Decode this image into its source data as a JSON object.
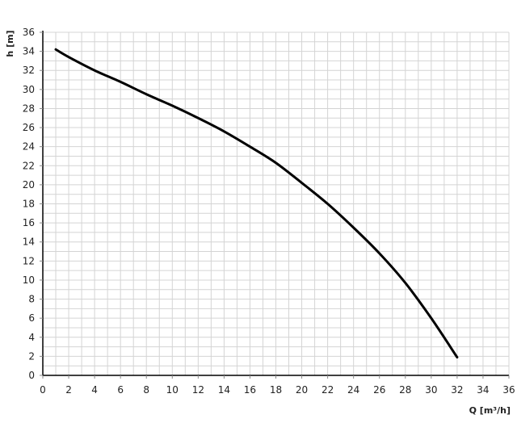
{
  "chart_data": {
    "type": "line",
    "title": "",
    "xlabel": "Q [m³/h]",
    "ylabel": "h [m]",
    "xlim": [
      0,
      36
    ],
    "ylim": [
      0,
      36
    ],
    "x_ticks": [
      0,
      2,
      4,
      6,
      8,
      10,
      12,
      14,
      16,
      18,
      20,
      22,
      24,
      26,
      28,
      30,
      32,
      34,
      36
    ],
    "y_ticks": [
      0,
      2,
      4,
      6,
      8,
      10,
      12,
      14,
      16,
      18,
      20,
      22,
      24,
      26,
      28,
      30,
      32,
      34,
      36
    ],
    "grid": true,
    "grid_minor_step": 1,
    "line_color": "#000000",
    "grid_color": "#d4d4d4",
    "series": [
      {
        "x": [
          1,
          2,
          4,
          6,
          8,
          10,
          12,
          14,
          16,
          18,
          20,
          22,
          24,
          26,
          28,
          30,
          32
        ],
        "y": [
          34.2,
          33.4,
          32.0,
          30.8,
          29.5,
          28.3,
          27.0,
          25.6,
          24.0,
          22.3,
          20.2,
          18.0,
          15.5,
          12.8,
          9.7,
          6.0,
          1.9
        ]
      }
    ]
  }
}
